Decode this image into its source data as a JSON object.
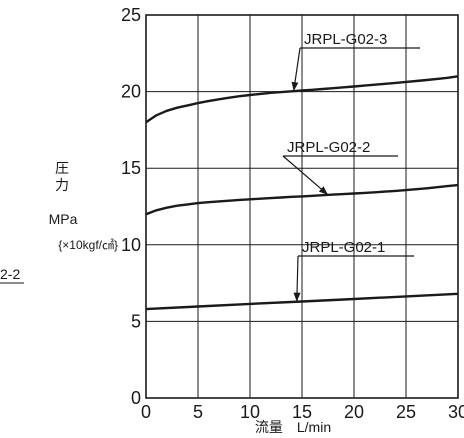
{
  "chart_data": {
    "type": "line",
    "xlabel": "流量　L/min",
    "ylabel_lines": [
      "圧",
      "力"
    ],
    "ylabel_unit": "MPa",
    "ylabel_unit_alt": "{×10kgf/㎠}",
    "x_ticks": [
      "0",
      "5",
      "10",
      "15",
      "20",
      "25",
      "30"
    ],
    "y_ticks": [
      "0",
      "5",
      "10",
      "15",
      "20",
      "25"
    ],
    "xlim": [
      0,
      30
    ],
    "ylim": [
      0,
      25
    ],
    "grid": true,
    "series": [
      {
        "name": "JRPL-G02-3",
        "x": [
          0,
          1,
          2,
          3,
          4,
          5,
          6,
          7,
          8,
          9,
          10,
          11,
          12,
          13,
          14,
          15,
          16,
          17,
          18,
          19,
          20,
          21,
          22,
          23,
          24,
          25,
          26,
          27,
          28,
          29,
          30
        ],
        "values": [
          18.0,
          18.45,
          18.75,
          18.95,
          19.1,
          19.25,
          19.38,
          19.5,
          19.6,
          19.7,
          19.78,
          19.85,
          19.92,
          19.97,
          20.02,
          20.07,
          20.12,
          20.17,
          20.22,
          20.28,
          20.33,
          20.39,
          20.45,
          20.51,
          20.57,
          20.63,
          20.69,
          20.76,
          20.83,
          20.9,
          21.0
        ]
      },
      {
        "name": "JRPL-G02-2",
        "x": [
          0,
          1,
          2,
          3,
          4,
          5,
          6,
          7,
          8,
          9,
          10,
          11,
          12,
          13,
          14,
          15,
          16,
          17,
          18,
          19,
          20,
          21,
          22,
          23,
          24,
          25,
          26,
          27,
          28,
          29,
          30
        ],
        "values": [
          12.0,
          12.25,
          12.42,
          12.55,
          12.64,
          12.72,
          12.78,
          12.83,
          12.88,
          12.93,
          12.97,
          13.01,
          13.05,
          13.09,
          13.13,
          13.16,
          13.2,
          13.24,
          13.28,
          13.31,
          13.35,
          13.39,
          13.43,
          13.47,
          13.52,
          13.57,
          13.63,
          13.69,
          13.76,
          13.83,
          13.9
        ]
      },
      {
        "name": "JRPL-G02-1",
        "x": [
          0,
          5,
          10,
          15,
          20,
          25,
          30
        ],
        "values": [
          5.8,
          5.97,
          6.14,
          6.3,
          6.46,
          6.63,
          6.8
        ]
      }
    ],
    "annotations": [
      {
        "text": "JRPL-G02-3",
        "series": "JRPL-G02-3",
        "x": 14.2
      },
      {
        "text": "JRPL-G02-2",
        "series": "JRPL-G02-2",
        "x": 17.5
      },
      {
        "text": "JRPL-G02-1",
        "series": "JRPL-G02-1",
        "x": 14.5
      }
    ],
    "edge_fragment": "2-2",
    "colors": {
      "line": "#1a1a1a",
      "grid": "#1a1a1a",
      "text": "#1a1a1a"
    }
  }
}
